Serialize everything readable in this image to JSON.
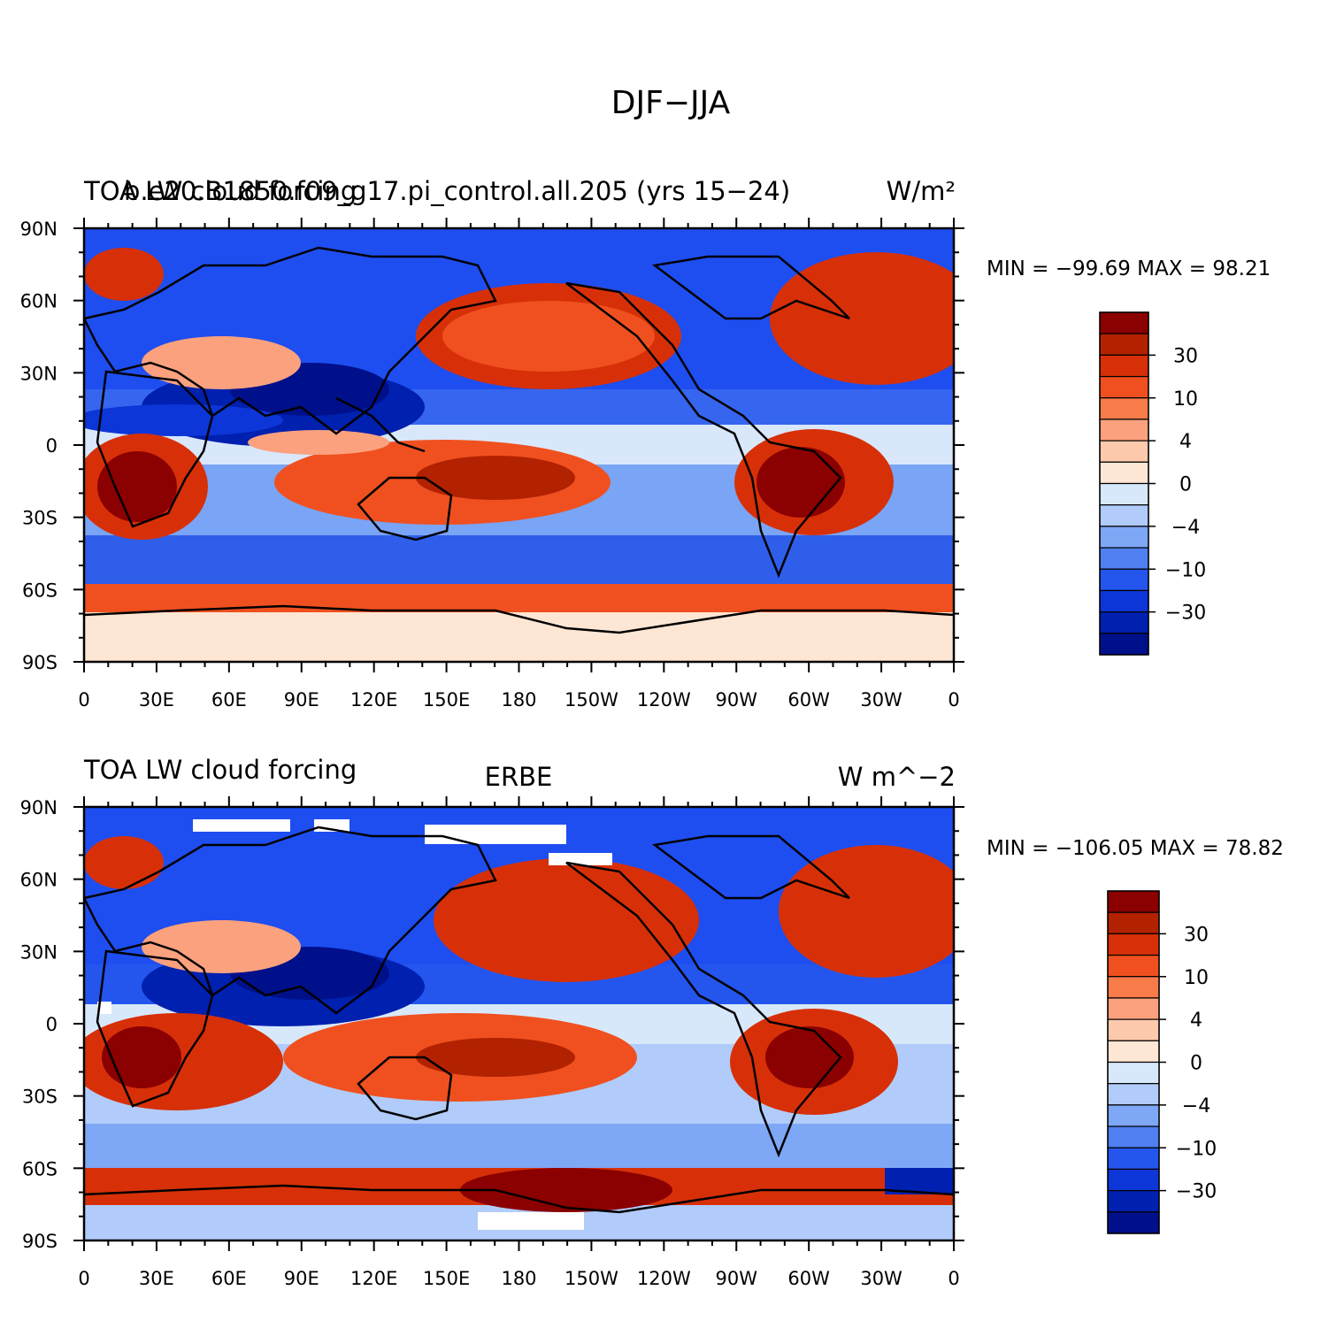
{
  "figure": {
    "title": "DJF−JJA"
  },
  "panels": [
    {
      "title_left": "TOA LW cloud forcing",
      "title_overlap": "b.e20.B1850.f09_g17.pi_control.all.205 (yrs 15−24)",
      "title_right_units": "W/m²",
      "stats": "MIN = −99.69 MAX =  98.21"
    },
    {
      "title_left": "TOA LW cloud forcing",
      "title_center": "ERBE",
      "title_right_units": "W m^−2",
      "stats": "MIN = −106.05 MAX =  78.82"
    }
  ],
  "axes": {
    "lat_labels": [
      "90N",
      "60N",
      "30N",
      "0",
      "30S",
      "60S",
      "90S"
    ],
    "lon_labels": [
      "0",
      "30E",
      "60E",
      "90E",
      "120E",
      "150E",
      "180",
      "150W",
      "120W",
      "90W",
      "60W",
      "30W",
      "0"
    ]
  },
  "colorbar": {
    "colors": [
      "#8b0000",
      "#b22200",
      "#d73008",
      "#f0501f",
      "#f87b4a",
      "#fba17e",
      "#fdc9ac",
      "#fee6d4",
      "#d8e8fb",
      "#b1ccfa",
      "#7ea7f5",
      "#4f7ff0",
      "#2456ee",
      "#0c36d8",
      "#0020b0",
      "#00108a"
    ],
    "labels": [
      "30",
      "10",
      "4",
      "0",
      "−4",
      "−10",
      "−30"
    ]
  }
}
